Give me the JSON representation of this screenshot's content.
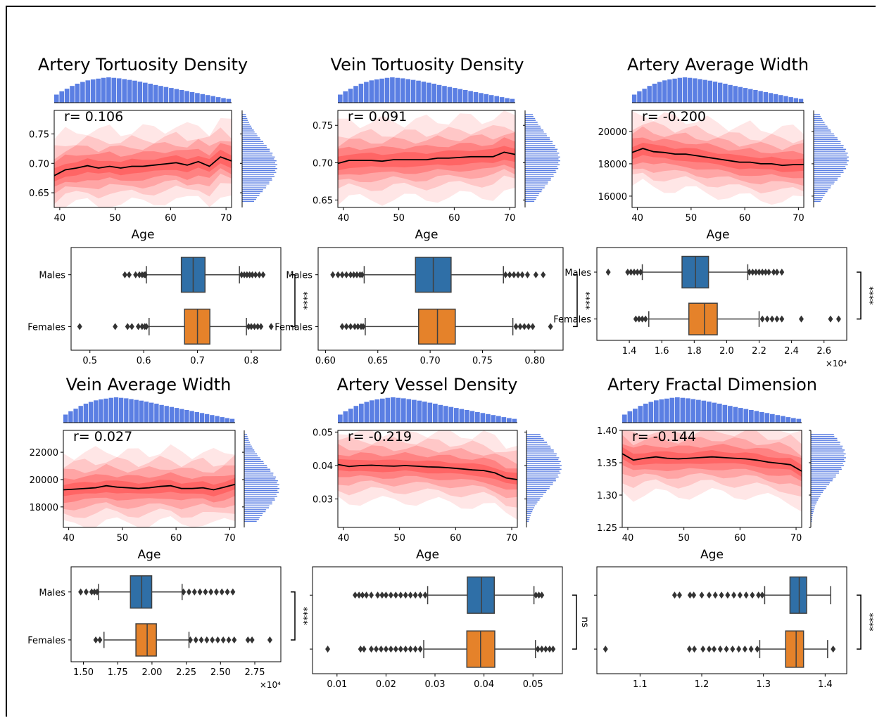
{
  "colors": {
    "hist": "#5b7fe3",
    "band": "#ff3b3b",
    "median": "#000000",
    "males": "#2f6fa7",
    "females": "#e5822a",
    "box_edge": "#404040"
  },
  "panels": [
    {
      "title": "Artery Tortuosity Density",
      "r_label": "r= 0.106",
      "xlabel": "Age",
      "age_ticks": [
        40,
        50,
        60,
        70
      ],
      "y_ticks": [
        "0.65",
        "0.70",
        "0.75"
      ],
      "y_tick_values": [
        0.65,
        0.7,
        0.75
      ],
      "ylim": [
        0.625,
        0.79
      ],
      "age_median": [
        0.679,
        0.689,
        0.692,
        0.696,
        0.692,
        0.695,
        0.692,
        0.695,
        0.695,
        0.697,
        0.699,
        0.701,
        0.697,
        0.703,
        0.695,
        0.711,
        0.704
      ],
      "band_halfwidths": [
        0.062,
        0.045,
        0.033,
        0.022,
        0.011
      ],
      "box": {
        "categories": [
          "Males",
          "Females"
        ],
        "x_ticks": [
          "0.5",
          "0.6",
          "0.7",
          "0.8"
        ],
        "x_tick_values": [
          0.5,
          0.6,
          0.7,
          0.8
        ],
        "xlim": [
          0.465,
          0.855
        ],
        "males": {
          "q1": 0.67,
          "median": 0.692,
          "q3": 0.714,
          "whislo": 0.605,
          "whishi": 0.778,
          "fliers": [
            0.565,
            0.573,
            0.585,
            0.592,
            0.597,
            0.601,
            0.603,
            0.782,
            0.787,
            0.792,
            0.797,
            0.802,
            0.808,
            0.815,
            0.822
          ]
        },
        "females": {
          "q1": 0.676,
          "median": 0.7,
          "q3": 0.723,
          "whislo": 0.61,
          "whishi": 0.791,
          "fliers": [
            0.481,
            0.547,
            0.57,
            0.578,
            0.59,
            0.597,
            0.602,
            0.605,
            0.795,
            0.8,
            0.806,
            0.812,
            0.818,
            0.837
          ]
        },
        "sig": "****",
        "exponent": ""
      }
    },
    {
      "title": "Vein Tortuosity Density",
      "r_label": "r= 0.091",
      "xlabel": "Age",
      "age_ticks": [
        40,
        50,
        60,
        70
      ],
      "y_ticks": [
        "0.65",
        "0.70",
        "0.75"
      ],
      "y_tick_values": [
        0.65,
        0.7,
        0.75
      ],
      "ylim": [
        0.64,
        0.77
      ],
      "age_median": [
        0.699,
        0.703,
        0.703,
        0.703,
        0.702,
        0.704,
        0.704,
        0.704,
        0.704,
        0.706,
        0.706,
        0.707,
        0.708,
        0.708,
        0.708,
        0.714,
        0.711
      ],
      "band_halfwidths": [
        0.052,
        0.036,
        0.026,
        0.017,
        0.009
      ],
      "box": {
        "categories": [
          "Males",
          "Females"
        ],
        "x_ticks": [
          "0.60",
          "0.65",
          "0.70",
          "0.75",
          "0.80"
        ],
        "x_tick_values": [
          0.6,
          0.65,
          0.7,
          0.75,
          0.8
        ],
        "xlim": [
          0.593,
          0.827
        ],
        "males": {
          "q1": 0.686,
          "median": 0.703,
          "q3": 0.72,
          "whislo": 0.637,
          "whishi": 0.77,
          "fliers": [
            0.607,
            0.612,
            0.616,
            0.62,
            0.624,
            0.627,
            0.63,
            0.633,
            0.635,
            0.772,
            0.776,
            0.78,
            0.784,
            0.788,
            0.793,
            0.801,
            0.808
          ]
        },
        "females": {
          "q1": 0.689,
          "median": 0.707,
          "q3": 0.724,
          "whislo": 0.638,
          "whishi": 0.779,
          "fliers": [
            0.616,
            0.62,
            0.624,
            0.628,
            0.631,
            0.634,
            0.636,
            0.782,
            0.786,
            0.79,
            0.794,
            0.798,
            0.815
          ]
        },
        "sig": "****",
        "exponent": ""
      }
    },
    {
      "title": "Artery Average Width",
      "r_label": "r= -0.200",
      "xlabel": "Age",
      "age_ticks": [
        40,
        50,
        60,
        70
      ],
      "y_ticks": [
        "16000",
        "18000",
        "20000"
      ],
      "y_tick_values": [
        16000,
        18000,
        20000
      ],
      "ylim": [
        15300,
        21300
      ],
      "age_median": [
        18700,
        18950,
        18750,
        18700,
        18600,
        18600,
        18500,
        18400,
        18300,
        18200,
        18100,
        18100,
        18000,
        18000,
        17900,
        17950,
        17950
      ],
      "band_halfwidths": [
        2200,
        1600,
        1150,
        750,
        380
      ],
      "box": {
        "categories": [
          "Males",
          "Females"
        ],
        "x_ticks": [
          "1.4",
          "1.6",
          "1.8",
          "2.0",
          "2.2",
          "2.4",
          "2.6"
        ],
        "x_tick_values": [
          1.4,
          1.6,
          1.8,
          2.0,
          2.2,
          2.4,
          2.6
        ],
        "xlim": [
          1.2,
          2.74
        ],
        "males": {
          "q1": 1.725,
          "median": 1.808,
          "q3": 1.888,
          "whislo": 1.48,
          "whishi": 2.13,
          "fliers": [
            1.27,
            1.39,
            1.41,
            1.43,
            1.45,
            1.47,
            2.14,
            2.16,
            2.18,
            2.2,
            2.22,
            2.24,
            2.26,
            2.29,
            2.31,
            2.34
          ]
        },
        "females": {
          "q1": 1.767,
          "median": 1.863,
          "q3": 1.942,
          "whislo": 1.52,
          "whishi": 2.2,
          "fliers": [
            1.44,
            1.46,
            1.48,
            1.5,
            2.22,
            2.25,
            2.28,
            2.31,
            2.34,
            2.46,
            2.64,
            2.69
          ]
        },
        "sig": "****",
        "exponent": "×10⁴"
      }
    },
    {
      "title": "Vein Average Width",
      "r_label": "r= 0.027",
      "xlabel": "Age",
      "age_ticks": [
        40,
        50,
        60,
        70
      ],
      "y_ticks": [
        "18000",
        "20000",
        "22000"
      ],
      "y_tick_values": [
        18000,
        20000,
        22000
      ],
      "ylim": [
        16500,
        23600
      ],
      "age_median": [
        19250,
        19300,
        19350,
        19400,
        19550,
        19450,
        19400,
        19350,
        19400,
        19500,
        19550,
        19350,
        19350,
        19400,
        19250,
        19450,
        19650
      ],
      "band_halfwidths": [
        2600,
        1900,
        1350,
        850,
        420
      ],
      "box": {
        "categories": [
          "Males",
          "Females"
        ],
        "x_ticks": [
          "1.50",
          "1.75",
          "2.00",
          "2.25",
          "2.50",
          "2.75"
        ],
        "x_tick_values": [
          1.5,
          1.75,
          2.0,
          2.25,
          2.5,
          2.75
        ],
        "xlim": [
          1.41,
          2.94
        ],
        "males": {
          "q1": 1.843,
          "median": 1.925,
          "q3": 1.998,
          "whislo": 1.61,
          "whishi": 2.22,
          "fliers": [
            1.48,
            1.52,
            1.56,
            1.58,
            1.6,
            2.23,
            2.27,
            2.31,
            2.35,
            2.39,
            2.43,
            2.47,
            2.51,
            2.55,
            2.59
          ]
        },
        "females": {
          "q1": 1.883,
          "median": 1.965,
          "q3": 2.032,
          "whislo": 1.65,
          "whishi": 2.27,
          "fliers": [
            1.59,
            1.62,
            2.28,
            2.32,
            2.36,
            2.4,
            2.44,
            2.48,
            2.52,
            2.56,
            2.6,
            2.7,
            2.73,
            2.86
          ]
        },
        "sig": "****",
        "exponent": "×10⁴"
      }
    },
    {
      "title": "Artery Vessel Density",
      "r_label": "r= -0.219",
      "xlabel": "Age",
      "age_ticks": [
        40,
        50,
        60,
        70
      ],
      "y_ticks": [
        "0.03",
        "0.04",
        "0.05"
      ],
      "y_tick_values": [
        0.03,
        0.04,
        0.05
      ],
      "ylim": [
        0.0215,
        0.0505
      ],
      "age_median": [
        0.0403,
        0.0397,
        0.04,
        0.0401,
        0.0399,
        0.0398,
        0.04,
        0.0398,
        0.0396,
        0.0395,
        0.0393,
        0.039,
        0.0387,
        0.0385,
        0.0378,
        0.0363,
        0.0358
      ],
      "band_halfwidths": [
        0.0105,
        0.0075,
        0.0053,
        0.0034,
        0.0017
      ],
      "box": {
        "categories": [
          "",
          ""
        ],
        "x_ticks": [
          "0.01",
          "0.02",
          "0.03",
          "0.04",
          "0.05"
        ],
        "x_tick_values": [
          0.01,
          0.02,
          0.03,
          0.04,
          0.05
        ],
        "xlim": [
          0.005,
          0.056
        ],
        "males": {
          "q1": 0.0366,
          "median": 0.0395,
          "q3": 0.0421,
          "whislo": 0.0285,
          "whishi": 0.0502,
          "fliers": [
            0.0137,
            0.0145,
            0.0152,
            0.016,
            0.017,
            0.0183,
            0.0192,
            0.02,
            0.021,
            0.022,
            0.023,
            0.024,
            0.025,
            0.026,
            0.027,
            0.028,
            0.0506,
            0.0512,
            0.0518
          ]
        },
        "females": {
          "q1": 0.0365,
          "median": 0.0393,
          "q3": 0.0422,
          "whislo": 0.0277,
          "whishi": 0.0505,
          "fliers": [
            0.0081,
            0.0148,
            0.0155,
            0.017,
            0.018,
            0.019,
            0.02,
            0.021,
            0.022,
            0.023,
            0.024,
            0.025,
            0.026,
            0.027,
            0.051,
            0.0518,
            0.0526,
            0.0534,
            0.0541
          ]
        },
        "sig": "ns",
        "exponent": ""
      }
    },
    {
      "title": "Artery Fractal Dimension",
      "r_label": "r= -0.144",
      "xlabel": "Age",
      "age_ticks": [
        40,
        50,
        60,
        70
      ],
      "y_ticks": [
        "1.25",
        "1.30",
        "1.35",
        "1.40"
      ],
      "y_tick_values": [
        1.25,
        1.3,
        1.35,
        1.4
      ],
      "ylim": [
        1.25,
        1.4
      ],
      "age_median": [
        1.364,
        1.354,
        1.357,
        1.359,
        1.357,
        1.356,
        1.357,
        1.358,
        1.359,
        1.358,
        1.357,
        1.356,
        1.354,
        1.351,
        1.349,
        1.347,
        1.337
      ],
      "band_halfwidths": [
        0.056,
        0.04,
        0.028,
        0.018,
        0.009
      ],
      "box": {
        "categories": [
          "",
          ""
        ],
        "x_ticks": [
          "1.1",
          "1.2",
          "1.3",
          "1.4"
        ],
        "x_tick_values": [
          1.1,
          1.2,
          1.3,
          1.4
        ],
        "xlim": [
          1.03,
          1.435
        ],
        "males": {
          "q1": 1.343,
          "median": 1.358,
          "q3": 1.37,
          "whislo": 1.302,
          "whishi": 1.409,
          "fliers": [
            1.156,
            1.164,
            1.181,
            1.187,
            1.2,
            1.212,
            1.222,
            1.232,
            1.242,
            1.252,
            1.262,
            1.272,
            1.282,
            1.292,
            1.298
          ]
        },
        "females": {
          "q1": 1.336,
          "median": 1.353,
          "q3": 1.365,
          "whislo": 1.294,
          "whishi": 1.404,
          "fliers": [
            1.044,
            1.18,
            1.188,
            1.202,
            1.212,
            1.22,
            1.23,
            1.24,
            1.25,
            1.26,
            1.27,
            1.28,
            1.29,
            1.413
          ]
        },
        "sig": "****",
        "exponent": ""
      }
    }
  ],
  "chart_data": [
    {
      "type": "line",
      "title": "Artery Tortuosity Density",
      "xlabel": "Age",
      "ylabel": "",
      "annotation": "r= 0.106",
      "xlim": [
        39,
        71
      ],
      "ylim": [
        0.625,
        0.79
      ],
      "x": [
        39,
        41,
        43,
        45,
        47,
        49,
        51,
        53,
        55,
        57,
        59,
        61,
        63,
        65,
        67,
        69,
        71
      ],
      "values": [
        0.679,
        0.689,
        0.692,
        0.696,
        0.692,
        0.695,
        0.692,
        0.695,
        0.695,
        0.697,
        0.699,
        0.701,
        0.697,
        0.703,
        0.695,
        0.711,
        0.704
      ]
    },
    {
      "type": "line",
      "title": "Vein Tortuosity Density",
      "xlabel": "Age",
      "ylabel": "",
      "annotation": "r= 0.091",
      "xlim": [
        39,
        71
      ],
      "ylim": [
        0.64,
        0.77
      ],
      "x": [
        39,
        41,
        43,
        45,
        47,
        49,
        51,
        53,
        55,
        57,
        59,
        61,
        63,
        65,
        67,
        69,
        71
      ],
      "values": [
        0.699,
        0.703,
        0.703,
        0.703,
        0.702,
        0.704,
        0.704,
        0.704,
        0.704,
        0.706,
        0.706,
        0.707,
        0.708,
        0.708,
        0.708,
        0.714,
        0.711
      ]
    },
    {
      "type": "line",
      "title": "Artery Average Width",
      "xlabel": "Age",
      "ylabel": "",
      "annotation": "r= -0.200",
      "xlim": [
        39,
        71
      ],
      "ylim": [
        15300,
        21300
      ],
      "x": [
        39,
        41,
        43,
        45,
        47,
        49,
        51,
        53,
        55,
        57,
        59,
        61,
        63,
        65,
        67,
        69,
        71
      ],
      "values": [
        18700,
        18950,
        18750,
        18700,
        18600,
        18600,
        18500,
        18400,
        18300,
        18200,
        18100,
        18100,
        18000,
        18000,
        17900,
        17950,
        17950
      ]
    },
    {
      "type": "line",
      "title": "Vein Average Width",
      "xlabel": "Age",
      "ylabel": "",
      "annotation": "r= 0.027",
      "xlim": [
        39,
        71
      ],
      "ylim": [
        16500,
        23600
      ],
      "x": [
        39,
        41,
        43,
        45,
        47,
        49,
        51,
        53,
        55,
        57,
        59,
        61,
        63,
        65,
        67,
        69,
        71
      ],
      "values": [
        19250,
        19300,
        19350,
        19400,
        19550,
        19450,
        19400,
        19350,
        19400,
        19500,
        19550,
        19350,
        19350,
        19400,
        19250,
        19450,
        19650
      ]
    },
    {
      "type": "line",
      "title": "Artery Vessel Density",
      "xlabel": "Age",
      "ylabel": "",
      "annotation": "r= -0.219",
      "xlim": [
        39,
        71
      ],
      "ylim": [
        0.0215,
        0.0505
      ],
      "x": [
        39,
        41,
        43,
        45,
        47,
        49,
        51,
        53,
        55,
        57,
        59,
        61,
        63,
        65,
        67,
        69,
        71
      ],
      "values": [
        0.0403,
        0.0397,
        0.04,
        0.0401,
        0.0399,
        0.0398,
        0.04,
        0.0398,
        0.0396,
        0.0395,
        0.0393,
        0.039,
        0.0387,
        0.0385,
        0.0378,
        0.0363,
        0.0358
      ]
    },
    {
      "type": "line",
      "title": "Artery Fractal Dimension",
      "xlabel": "Age",
      "ylabel": "",
      "annotation": "r= -0.144",
      "xlim": [
        39,
        71
      ],
      "ylim": [
        1.25,
        1.4
      ],
      "x": [
        39,
        41,
        43,
        45,
        47,
        49,
        51,
        53,
        55,
        57,
        59,
        61,
        63,
        65,
        67,
        69,
        71
      ],
      "values": [
        1.364,
        1.354,
        1.357,
        1.359,
        1.357,
        1.356,
        1.357,
        1.358,
        1.359,
        1.358,
        1.357,
        1.356,
        1.354,
        1.351,
        1.349,
        1.347,
        1.337
      ]
    }
  ]
}
